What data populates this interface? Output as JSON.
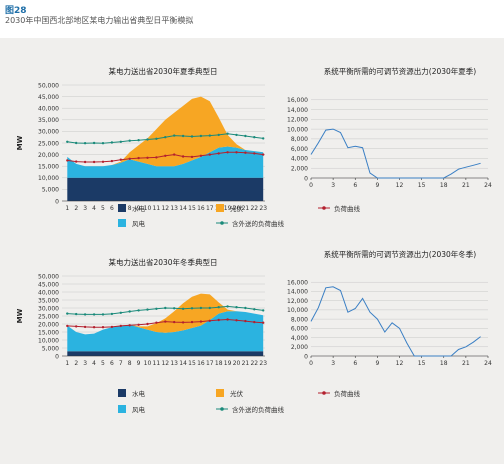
{
  "figure": {
    "label": "图28",
    "caption": "2030年中国西北部地区某电力输出省典型日平衡模拟"
  },
  "colors": {
    "hydro": "#1b3a66",
    "wind": "#2bb3e0",
    "solar": "#f7a623",
    "load": "#b3202e",
    "load_export": "#1a8a7a",
    "balance_line": "#3a7fc4",
    "grid": "#c8c8c8",
    "axis": "#333333"
  },
  "legend_labels": {
    "hydro": "水电",
    "solar": "光伏",
    "load": "负荷曲线",
    "wind": "风电",
    "load_export": "含外送的负荷曲线"
  },
  "chart_data": [
    {
      "type": "area",
      "title": "某电力送出省2030年夏季典型日",
      "ylabel": "MW",
      "xlabel": "",
      "ylim": [
        0,
        50000
      ],
      "yticks": [
        "0",
        "5,000",
        "10,000",
        "15,000",
        "20,000",
        "25,000",
        "30,000",
        "35,000",
        "40,000",
        "45,000",
        "50,000"
      ],
      "yticks_values": [
        0,
        5000,
        10000,
        15000,
        20000,
        25000,
        30000,
        35000,
        40000,
        45000,
        50000
      ],
      "categories": [
        "1",
        "2",
        "3",
        "4",
        "5",
        "6",
        "7",
        "8",
        "9",
        "10",
        "11",
        "12",
        "13",
        "14",
        "15",
        "16",
        "17",
        "18",
        "19",
        "20",
        "21",
        "22",
        "23"
      ],
      "grid": true,
      "series": [
        {
          "name": "水电",
          "kind": "area",
          "values": [
            10000,
            10000,
            10000,
            10000,
            10000,
            10000,
            10000,
            10000,
            10000,
            10000,
            10000,
            10000,
            10000,
            10000,
            10000,
            10000,
            10000,
            10000,
            10000,
            10000,
            10000,
            10000,
            10000
          ]
        },
        {
          "name": "风电",
          "kind": "area",
          "values": [
            9000,
            6000,
            5000,
            5000,
            5000,
            5500,
            6500,
            8000,
            7000,
            6000,
            5000,
            5000,
            5000,
            6000,
            7500,
            9000,
            11000,
            13000,
            13500,
            13000,
            12000,
            11500,
            11000
          ]
        },
        {
          "name": "光伏",
          "kind": "area",
          "values": [
            0,
            0,
            0,
            0,
            0,
            0,
            500,
            3000,
            7000,
            11000,
            16000,
            20000,
            23000,
            25000,
            26500,
            26000,
            22000,
            13000,
            5000,
            1500,
            0,
            0,
            0
          ]
        },
        {
          "name": "负荷曲线",
          "kind": "line",
          "values": [
            17500,
            17000,
            16800,
            16800,
            16900,
            17200,
            17800,
            18200,
            18500,
            18600,
            18800,
            19500,
            20000,
            19200,
            19000,
            19500,
            20000,
            20500,
            21000,
            21000,
            20800,
            20500,
            20000
          ]
        },
        {
          "name": "含外送的负荷曲线",
          "kind": "line",
          "values": [
            25500,
            25000,
            24900,
            25000,
            24900,
            25200,
            25500,
            26000,
            26200,
            26500,
            26800,
            27500,
            28200,
            28000,
            27800,
            28000,
            28200,
            28500,
            29000,
            28500,
            28000,
            27500,
            27000
          ]
        }
      ]
    },
    {
      "type": "line",
      "title": "系统平衡所需的可调节资源出力(2030年夏季)",
      "ylabel": "",
      "xlabel": "",
      "ylim": [
        0,
        18000
      ],
      "yticks": [
        "0",
        "2,000",
        "4,000",
        "6,000",
        "8,000",
        "10,000",
        "12,000",
        "14,000",
        "16,000"
      ],
      "yticks_values": [
        0,
        2000,
        4000,
        6000,
        8000,
        10000,
        12000,
        14000,
        16000
      ],
      "xlim": [
        0,
        24
      ],
      "xticks": [
        "0",
        "3",
        "6",
        "9",
        "12",
        "15",
        "18",
        "21",
        "24"
      ],
      "xticks_values": [
        0,
        3,
        6,
        9,
        12,
        15,
        18,
        21,
        24
      ],
      "grid": true,
      "x": [
        0,
        1,
        2,
        3,
        4,
        5,
        6,
        7,
        8,
        9,
        10,
        11,
        12,
        13,
        14,
        15,
        16,
        17,
        18,
        19,
        20,
        21,
        22,
        23
      ],
      "values": [
        4800,
        7200,
        9800,
        10000,
        9300,
        6200,
        6500,
        6200,
        1000,
        0,
        0,
        0,
        0,
        0,
        0,
        0,
        0,
        0,
        0,
        800,
        1800,
        2200,
        2600,
        3000
      ]
    },
    {
      "type": "area",
      "title": "某电力送出省2030年冬季典型日",
      "ylabel": "MW",
      "xlabel": "",
      "ylim": [
        0,
        50000
      ],
      "yticks": [
        "0",
        "5,000",
        "10,000",
        "15,000",
        "20,000",
        "25,000",
        "30,000",
        "35,000",
        "40,000",
        "45,000",
        "50,000"
      ],
      "yticks_values": [
        0,
        5000,
        10000,
        15000,
        20000,
        25000,
        30000,
        35000,
        40000,
        45000,
        50000
      ],
      "categories": [
        "1",
        "2",
        "3",
        "4",
        "5",
        "6",
        "7",
        "8",
        "9",
        "10",
        "11",
        "12",
        "13",
        "14",
        "15",
        "16",
        "17",
        "18",
        "19",
        "20",
        "21",
        "22",
        "23"
      ],
      "grid": true,
      "series": [
        {
          "name": "水电",
          "kind": "area",
          "values": [
            3000,
            3000,
            3000,
            3000,
            3000,
            3000,
            3000,
            3000,
            3000,
            3000,
            3000,
            3000,
            3000,
            3000,
            3000,
            3000,
            3000,
            3000,
            3000,
            3000,
            3000,
            3000,
            3000
          ]
        },
        {
          "name": "风电",
          "kind": "area",
          "values": [
            16000,
            12000,
            10500,
            11000,
            13500,
            15000,
            16000,
            16500,
            15000,
            13500,
            12000,
            11500,
            12000,
            13000,
            14500,
            16000,
            19500,
            23500,
            25000,
            25000,
            24500,
            23500,
            22500
          ]
        },
        {
          "name": "光伏",
          "kind": "area",
          "values": [
            0,
            0,
            0,
            0,
            0,
            0,
            0,
            0,
            500,
            2000,
            5500,
            9000,
            13000,
            17000,
            19500,
            20000,
            16000,
            7000,
            1000,
            0,
            0,
            0,
            0
          ]
        },
        {
          "name": "负荷曲线",
          "kind": "line",
          "values": [
            18800,
            18500,
            18200,
            18000,
            18000,
            18200,
            18800,
            19200,
            19500,
            20000,
            20800,
            21500,
            21200,
            21000,
            21200,
            21500,
            22000,
            22500,
            22800,
            22300,
            21800,
            21200,
            20800
          ]
        },
        {
          "name": "含外送的负荷曲线",
          "kind": "line",
          "values": [
            26500,
            26200,
            26000,
            26000,
            26000,
            26300,
            27000,
            27800,
            28500,
            29000,
            29500,
            30000,
            29800,
            29500,
            29800,
            30000,
            30000,
            30500,
            31000,
            30500,
            30000,
            29200,
            28500
          ]
        }
      ]
    },
    {
      "type": "line",
      "title": "系统平衡所需的可调节资源出力(2030年冬季)",
      "ylabel": "",
      "xlabel": "",
      "ylim": [
        0,
        18000
      ],
      "yticks": [
        "0",
        "2,000",
        "4,000",
        "6,000",
        "8,000",
        "10,000",
        "12,000",
        "14,000",
        "16,000"
      ],
      "yticks_values": [
        0,
        2000,
        4000,
        6000,
        8000,
        10000,
        12000,
        14000,
        16000
      ],
      "xlim": [
        0,
        24
      ],
      "xticks": [
        "0",
        "3",
        "6",
        "9",
        "12",
        "15",
        "18",
        "21",
        "24"
      ],
      "xticks_values": [
        0,
        3,
        6,
        9,
        12,
        15,
        18,
        21,
        24
      ],
      "grid": true,
      "x": [
        0,
        1,
        2,
        3,
        4,
        5,
        6,
        7,
        8,
        9,
        10,
        11,
        12,
        13,
        14,
        15,
        16,
        17,
        18,
        19,
        20,
        21,
        22,
        23
      ],
      "values": [
        7500,
        10500,
        14800,
        15000,
        14200,
        9500,
        10300,
        12500,
        9500,
        8000,
        5200,
        7200,
        6000,
        2800,
        0,
        0,
        0,
        0,
        0,
        0,
        1400,
        2000,
        3000,
        4200
      ]
    }
  ]
}
